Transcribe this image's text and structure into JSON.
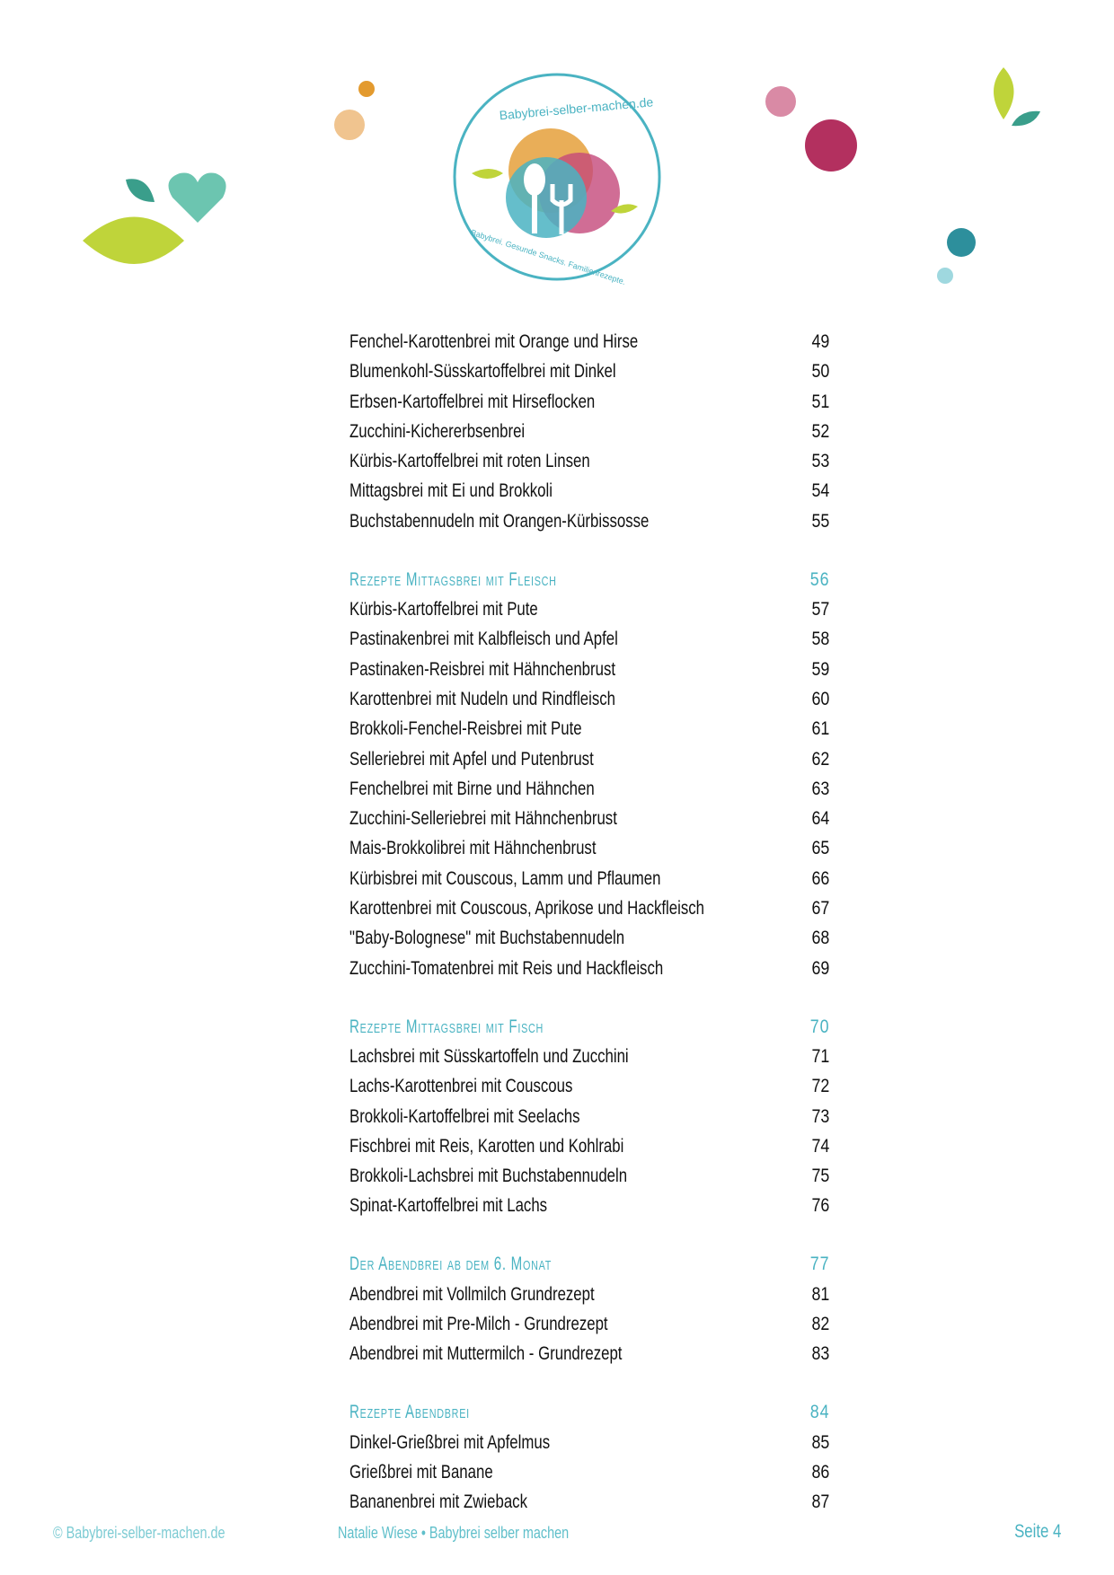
{
  "logo": {
    "title": "Babybrei-selber-machen.de",
    "tagline": "Babybrei. Gesunde Snacks. Familienrezepte."
  },
  "colors": {
    "accent": "#4ab3c2",
    "green": "#bfd43a",
    "magenta": "#b3305f",
    "orange": "#e39a2e"
  },
  "toc": [
    {
      "type": "item",
      "title": "Fenchel-Karottenbrei mit Orange und Hirse",
      "page": "49"
    },
    {
      "type": "item",
      "title": "Blumenkohl-Süsskartoffelbrei mit Dinkel",
      "page": "50"
    },
    {
      "type": "item",
      "title": "Erbsen-Kartoffelbrei mit Hirseflocken",
      "page": "51"
    },
    {
      "type": "item",
      "title": "Zucchini-Kichererbsenbrei",
      "page": "52"
    },
    {
      "type": "item",
      "title": "Kürbis-Kartoffelbrei mit roten Linsen",
      "page": "53"
    },
    {
      "type": "item",
      "title": "Mittagsbrei mit Ei und Brokkoli",
      "page": "54"
    },
    {
      "type": "item",
      "title": "Buchstabennudeln mit Orangen-Kürbissosse",
      "page": "55"
    },
    {
      "type": "heading",
      "title": "Rezepte Mittagsbrei mit Fleisch",
      "page": "56"
    },
    {
      "type": "item",
      "title": "Kürbis-Kartoffelbrei mit Pute",
      "page": "57"
    },
    {
      "type": "item",
      "title": "Pastinakenbrei mit Kalbfleisch und Apfel",
      "page": "58"
    },
    {
      "type": "item",
      "title": "Pastinaken-Reisbrei mit Hähnchenbrust",
      "page": "59"
    },
    {
      "type": "item",
      "title": "Karottenbrei mit Nudeln und Rindfleisch",
      "page": "60"
    },
    {
      "type": "item",
      "title": "Brokkoli-Fenchel-Reisbrei mit Pute",
      "page": "61"
    },
    {
      "type": "item",
      "title": "Selleriebrei mit Apfel und Putenbrust",
      "page": "62"
    },
    {
      "type": "item",
      "title": "Fenchelbrei mit Birne und Hähnchen",
      "page": "63"
    },
    {
      "type": "item",
      "title": "Zucchini-Selleriebrei mit Hähnchenbrust",
      "page": "64"
    },
    {
      "type": "item",
      "title": "Mais-Brokkolibrei mit Hähnchenbrust",
      "page": "65"
    },
    {
      "type": "item",
      "title": "Kürbisbrei mit Couscous, Lamm und Pflaumen",
      "page": "66"
    },
    {
      "type": "item",
      "title": "Karottenbrei mit Couscous, Aprikose und Hackfleisch",
      "page": "67"
    },
    {
      "type": "item",
      "title": "\"Baby-Bolognese\" mit Buchstabennudeln",
      "page": "68"
    },
    {
      "type": "item",
      "title": "Zucchini-Tomatenbrei mit Reis und Hackfleisch",
      "page": "69"
    },
    {
      "type": "heading",
      "title": "Rezepte Mittagsbrei mit Fisch",
      "page": "70"
    },
    {
      "type": "item",
      "title": "Lachsbrei mit Süsskartoffeln und Zucchini",
      "page": "71"
    },
    {
      "type": "item",
      "title": "Lachs-Karottenbrei mit Couscous",
      "page": "72"
    },
    {
      "type": "item",
      "title": "Brokkoli-Kartoffelbrei mit Seelachs",
      "page": "73"
    },
    {
      "type": "item",
      "title": "Fischbrei mit Reis, Karotten und Kohlrabi",
      "page": "74"
    },
    {
      "type": "item",
      "title": "Brokkoli-Lachsbrei mit Buchstabennudeln",
      "page": "75"
    },
    {
      "type": "item",
      "title": "Spinat-Kartoffelbrei mit Lachs",
      "page": "76"
    },
    {
      "type": "heading",
      "title": "Der Abendbrei ab dem 6. Monat",
      "page": "77"
    },
    {
      "type": "item",
      "title": "Abendbrei mit Vollmilch Grundrezept",
      "page": "81"
    },
    {
      "type": "item",
      "title": "Abendbrei mit Pre-Milch - Grundrezept",
      "page": "82"
    },
    {
      "type": "item",
      "title": "Abendbrei mit Muttermilch - Grundrezept",
      "page": "83"
    },
    {
      "type": "heading",
      "title": "Rezepte Abendbrei",
      "page": "84"
    },
    {
      "type": "item",
      "title": "Dinkel-Grießbrei mit Apfelmus",
      "page": "85"
    },
    {
      "type": "item",
      "title": "Grießbrei mit Banane",
      "page": "86"
    },
    {
      "type": "item",
      "title": "Bananenbrei mit Zwieback",
      "page": "87"
    }
  ],
  "footer": {
    "copyright": "© Babybrei-selber-machen.de",
    "author": "Natalie Wiese • Babybrei selber machen",
    "page": "Seite 4"
  }
}
